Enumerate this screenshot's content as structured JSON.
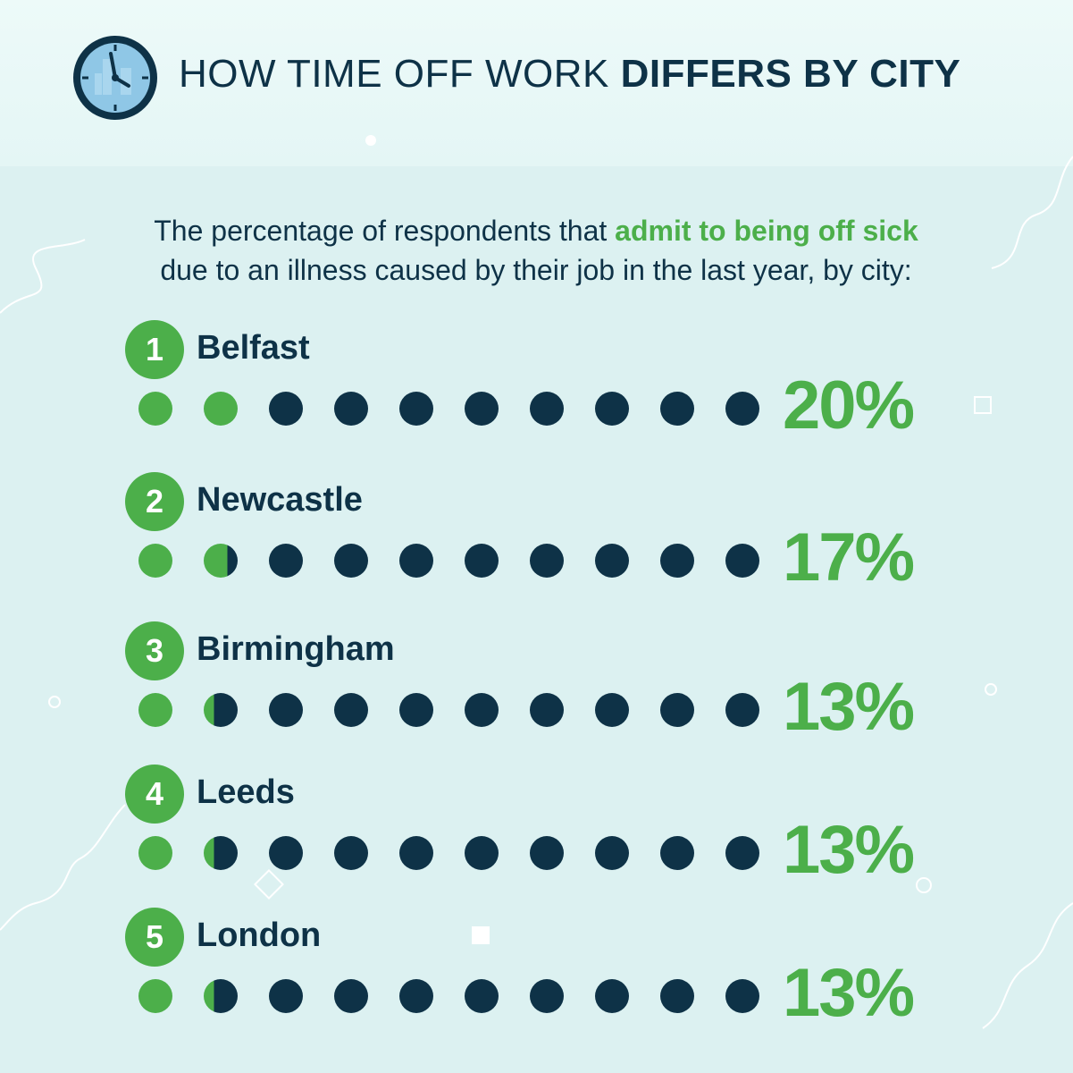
{
  "header": {
    "title_light": "HOW TIME OFF WORK ",
    "title_bold": "DIFFERS BY CITY"
  },
  "subtitle": {
    "part1": "The percentage of respondents that ",
    "highlight": "admit to being off sick",
    "part2": "due to an illness caused by their job in the last year, by city:"
  },
  "colors": {
    "accent": "#4caf4a",
    "dark": "#0e3247",
    "background": "#dcf1f1"
  },
  "icons": {
    "header_icon": "clock-icon"
  },
  "chart_data": {
    "type": "pictogram",
    "unit": "%",
    "dots_per_row": 10,
    "percent_per_dot": 10,
    "rows": [
      {
        "rank": "1",
        "city": "Belfast",
        "value": 20,
        "label": "20%"
      },
      {
        "rank": "2",
        "city": "Newcastle",
        "value": 17,
        "label": "17%"
      },
      {
        "rank": "3",
        "city": "Birmingham",
        "value": 13,
        "label": "13%"
      },
      {
        "rank": "4",
        "city": "Leeds",
        "value": 13,
        "label": "13%"
      },
      {
        "rank": "5",
        "city": "London",
        "value": 13,
        "label": "13%"
      }
    ]
  }
}
